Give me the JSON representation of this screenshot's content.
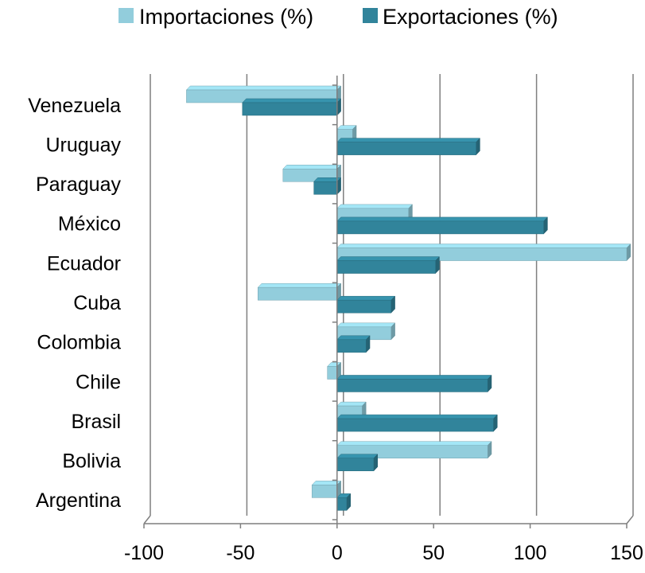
{
  "chart_data": {
    "type": "bar",
    "orientation": "horizontal",
    "style": "3d",
    "categories": [
      "Venezuela",
      "Uruguay",
      "Paraguay",
      "México",
      "Ecuador",
      "Cuba",
      "Colombia",
      "Chile",
      "Brasil",
      "Bolivia",
      "Argentina"
    ],
    "series": [
      {
        "name": "Importaciones (%)",
        "color": "#92cddc",
        "values": [
          -78,
          8,
          -28,
          37,
          150,
          -41,
          28,
          -5,
          13,
          78,
          -13
        ]
      },
      {
        "name": "Exportaciones (%)",
        "color": "#31849b",
        "values": [
          -49,
          72,
          -12,
          107,
          51,
          28,
          15,
          78,
          81,
          19,
          5
        ]
      }
    ],
    "xlim": [
      -100,
      150
    ],
    "xticks": [
      "-100",
      "-50",
      "0",
      "50",
      "100",
      "150"
    ],
    "grid": "vertical",
    "legend_position": "top"
  }
}
